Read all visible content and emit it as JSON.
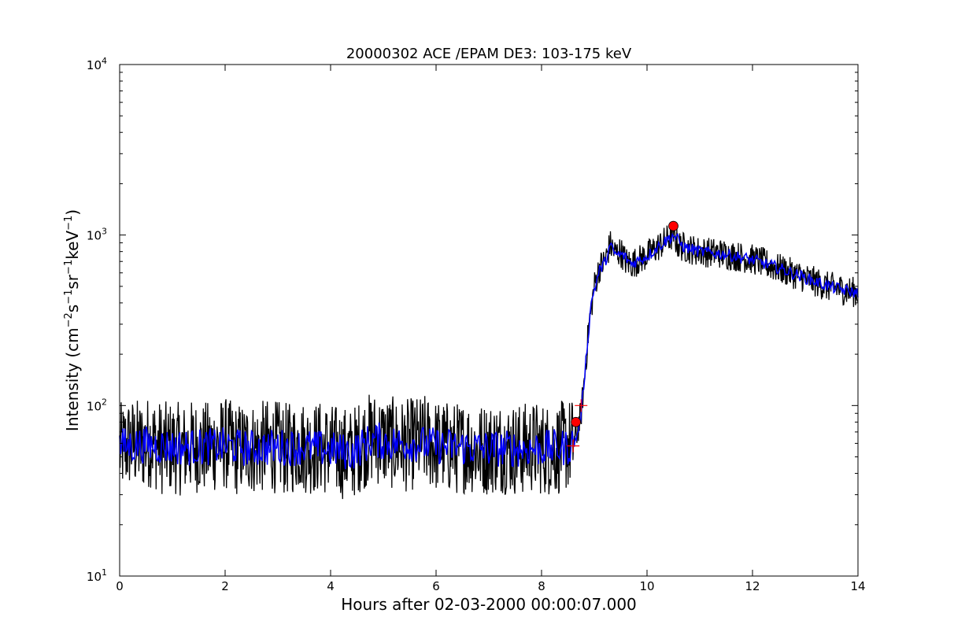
{
  "chart_data": {
    "type": "line",
    "title": "20000302 ACE /EPAM DE3: 103-175 keV",
    "xlabel": "Hours after 02-03-2000 00:00:07.000",
    "ylabel": {
      "parts": [
        "Intensity (cm",
        "−2",
        "s",
        "−1",
        "sr",
        "−1",
        "keV",
        "−1",
        ")"
      ]
    },
    "xlim": [
      0,
      14
    ],
    "ylim": [
      10,
      10000
    ],
    "yscale": "log",
    "grid": false,
    "x_ticks": [
      {
        "value": 0,
        "label": "0"
      },
      {
        "value": 2,
        "label": "2"
      },
      {
        "value": 4,
        "label": "4"
      },
      {
        "value": 6,
        "label": "6"
      },
      {
        "value": 8,
        "label": "8"
      },
      {
        "value": 10,
        "label": "10"
      },
      {
        "value": 12,
        "label": "12"
      },
      {
        "value": 14,
        "label": "14"
      }
    ],
    "y_ticks": [
      {
        "value": 10,
        "base": "10",
        "exp": "1"
      },
      {
        "value": 100,
        "base": "10",
        "exp": "2"
      },
      {
        "value": 1000,
        "base": "10",
        "exp": "3"
      },
      {
        "value": 10000,
        "base": "10",
        "exp": "4"
      }
    ],
    "colors": {
      "raw": "#000000",
      "smoothed": "#0000ff",
      "markers": "#ff0000"
    },
    "series": [
      {
        "style": "black raw data line",
        "points": [
          [
            0.0,
            55
          ],
          [
            0.2,
            60
          ],
          [
            0.4,
            58
          ],
          [
            0.6,
            62
          ],
          [
            0.8,
            56
          ],
          [
            1.0,
            57
          ],
          [
            1.2,
            55
          ],
          [
            1.4,
            58
          ],
          [
            1.6,
            56
          ],
          [
            1.8,
            58
          ],
          [
            2.0,
            60
          ],
          [
            2.2,
            55
          ],
          [
            2.4,
            57
          ],
          [
            2.6,
            56
          ],
          [
            2.8,
            58
          ],
          [
            3.0,
            57
          ],
          [
            3.2,
            55
          ],
          [
            3.4,
            59
          ],
          [
            3.6,
            56
          ],
          [
            3.8,
            57
          ],
          [
            4.0,
            55
          ],
          [
            4.2,
            53
          ],
          [
            4.4,
            52
          ],
          [
            4.6,
            60
          ],
          [
            4.8,
            65
          ],
          [
            5.0,
            62
          ],
          [
            5.2,
            60
          ],
          [
            5.4,
            58
          ],
          [
            5.6,
            60
          ],
          [
            5.8,
            62
          ],
          [
            6.0,
            58
          ],
          [
            6.2,
            57
          ],
          [
            6.4,
            56
          ],
          [
            6.6,
            58
          ],
          [
            6.8,
            55
          ],
          [
            7.0,
            56
          ],
          [
            7.2,
            57
          ],
          [
            7.4,
            56
          ],
          [
            7.6,
            55
          ],
          [
            7.8,
            57
          ],
          [
            8.0,
            56
          ],
          [
            8.2,
            55
          ],
          [
            8.4,
            57
          ],
          [
            8.6,
            60
          ],
          [
            8.68,
            70
          ],
          [
            8.75,
            90
          ],
          [
            8.82,
            150
          ],
          [
            8.9,
            300
          ],
          [
            9.0,
            500
          ],
          [
            9.1,
            650
          ],
          [
            9.2,
            700
          ],
          [
            9.3,
            880
          ],
          [
            9.4,
            780
          ],
          [
            9.5,
            800
          ],
          [
            9.6,
            700
          ],
          [
            9.7,
            680
          ],
          [
            9.8,
            700
          ],
          [
            10.0,
            760
          ],
          [
            10.2,
            850
          ],
          [
            10.4,
            950
          ],
          [
            10.5,
            1000
          ],
          [
            10.6,
            870
          ],
          [
            10.8,
            830
          ],
          [
            11.0,
            800
          ],
          [
            11.2,
            790
          ],
          [
            11.4,
            780
          ],
          [
            11.6,
            760
          ],
          [
            11.8,
            740
          ],
          [
            12.0,
            720
          ],
          [
            12.2,
            690
          ],
          [
            12.4,
            650
          ],
          [
            12.6,
            620
          ],
          [
            12.8,
            590
          ],
          [
            13.0,
            560
          ],
          [
            13.2,
            530
          ],
          [
            13.4,
            500
          ],
          [
            13.6,
            490
          ],
          [
            13.8,
            470
          ],
          [
            14.0,
            460
          ]
        ]
      },
      {
        "style": "blue smoothed line",
        "points": [
          [
            0.0,
            58
          ],
          [
            0.5,
            59
          ],
          [
            1.0,
            57
          ],
          [
            1.5,
            57
          ],
          [
            2.0,
            58
          ],
          [
            2.5,
            56
          ],
          [
            3.0,
            57
          ],
          [
            3.5,
            57
          ],
          [
            4.0,
            55
          ],
          [
            4.4,
            53
          ],
          [
            4.8,
            63
          ],
          [
            5.2,
            60
          ],
          [
            5.6,
            60
          ],
          [
            6.0,
            58
          ],
          [
            6.5,
            57
          ],
          [
            7.0,
            56
          ],
          [
            7.5,
            56
          ],
          [
            8.0,
            56
          ],
          [
            8.5,
            57
          ],
          [
            8.65,
            62
          ],
          [
            8.75,
            88
          ],
          [
            8.85,
            200
          ],
          [
            8.95,
            420
          ],
          [
            9.1,
            620
          ],
          [
            9.2,
            690
          ],
          [
            9.3,
            860
          ],
          [
            9.4,
            770
          ],
          [
            9.55,
            760
          ],
          [
            9.7,
            680
          ],
          [
            10.0,
            750
          ],
          [
            10.3,
            900
          ],
          [
            10.5,
            1000
          ],
          [
            10.7,
            850
          ],
          [
            11.0,
            800
          ],
          [
            11.5,
            770
          ],
          [
            12.0,
            715
          ],
          [
            12.5,
            640
          ],
          [
            13.0,
            560
          ],
          [
            13.5,
            495
          ],
          [
            14.0,
            455
          ]
        ]
      }
    ],
    "markers": [
      {
        "shape": "circle",
        "x": 8.65,
        "y": 80
      },
      {
        "shape": "circle",
        "x": 10.5,
        "y": 1130
      },
      {
        "shape": "plus",
        "x": 8.6,
        "y": 58
      },
      {
        "shape": "plus",
        "x": 8.75,
        "y": 100
      }
    ]
  }
}
